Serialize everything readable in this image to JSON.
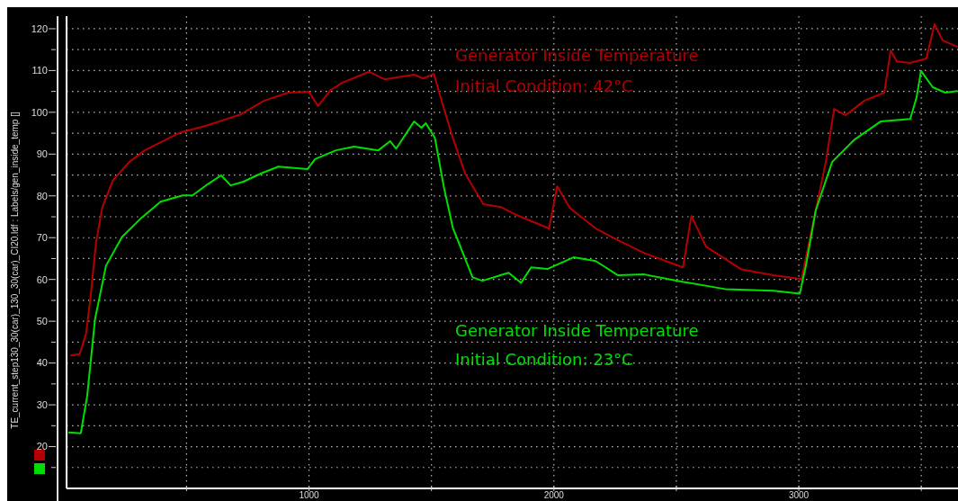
{
  "chart_data": {
    "type": "line",
    "ylabel": "TE_current_step130_30(car)_130_30(car)_CI20.ldf : Labels/gen_inside_temp []",
    "xlim": [
      10,
      3650
    ],
    "ylim": [
      10,
      123
    ],
    "xticks": [
      {
        "value": 500,
        "label": null
      },
      1000,
      {
        "value": 1500,
        "label": null
      },
      2000,
      {
        "value": 2500,
        "label": null
      },
      3000,
      {
        "value": 3500,
        "label": null
      }
    ],
    "yticks": [
      {
        "value": 15,
        "label": null
      },
      20,
      {
        "value": 25,
        "label": null
      },
      30,
      {
        "value": 35,
        "label": null
      },
      40,
      {
        "value": 45,
        "label": null
      },
      50,
      {
        "value": 55,
        "label": null
      },
      60,
      {
        "value": 65,
        "label": null
      },
      70,
      {
        "value": 75,
        "label": null
      },
      80,
      {
        "value": 85,
        "label": null
      },
      90,
      {
        "value": 95,
        "label": null
      },
      100,
      {
        "value": 105,
        "label": null
      },
      110,
      {
        "value": 115,
        "label": null
      },
      120
    ],
    "grid": true,
    "legend": false,
    "marker": "none",
    "line_style": "solid",
    "annotations": [
      "Generator Inside Temperature",
      "Initial Condition: 42°C",
      "Generator Inside Temperature",
      "Initial Condition: 23°C"
    ],
    "series": [
      {
        "color": "#b40000",
        "x": [
          28,
          64,
          90,
          108,
          130,
          156,
          200,
          266,
          329,
          475,
          574,
          721,
          817,
          915,
          1000,
          1037,
          1088,
          1136,
          1246,
          1308,
          1429,
          1466,
          1510,
          1539,
          1587,
          1638,
          1712,
          1785,
          1840,
          1980,
          2013,
          2065,
          2171,
          2262,
          2369,
          2527,
          2561,
          2622,
          2766,
          2897,
          3011,
          3110,
          3144,
          3191,
          3268,
          3349,
          3375,
          3400,
          3455,
          3521,
          3554,
          3587,
          3646
        ],
        "values": [
          41.8,
          42.2,
          47.2,
          55.8,
          68.7,
          77.3,
          83.8,
          88.1,
          90.9,
          95.2,
          96.7,
          99.5,
          102.8,
          104.7,
          104.9,
          101.5,
          105.3,
          107.1,
          109.7,
          107.9,
          109,
          108.1,
          109.2,
          103.2,
          93.9,
          85.3,
          78,
          77.3,
          75.6,
          72.2,
          82.3,
          77.1,
          72.2,
          69.4,
          66.3,
          62.9,
          75.2,
          67.8,
          62.4,
          61,
          60.1,
          88.1,
          100.8,
          99.3,
          102.8,
          104.7,
          114.8,
          112.2,
          111.8,
          112.9,
          121.1,
          117.2,
          115.7
        ]
      },
      {
        "color": "#00e000",
        "x": [
          20,
          68,
          94,
          126,
          171,
          237,
          315,
          394,
          484,
          524,
          589,
          641,
          680,
          732,
          809,
          875,
          993,
          1025,
          1110,
          1184,
          1283,
          1331,
          1356,
          1429,
          1459,
          1477,
          1514,
          1550,
          1587,
          1668,
          1708,
          1815,
          1866,
          1907,
          1973,
          2080,
          2171,
          2262,
          2369,
          2500,
          2699,
          2897,
          3004,
          3029,
          3069,
          3136,
          3228,
          3334,
          3455,
          3481,
          3499,
          3547,
          3598,
          3646
        ],
        "values": [
          23.4,
          23.2,
          32,
          50.4,
          63.3,
          70.2,
          74.7,
          78.6,
          80.1,
          80.1,
          82.9,
          84.9,
          82.5,
          83.4,
          85.5,
          87,
          86.4,
          88.8,
          90.9,
          91.8,
          90.9,
          93.1,
          91.3,
          97.8,
          96.3,
          97.4,
          93.9,
          82.3,
          72.4,
          60.5,
          59.7,
          61.6,
          59.2,
          62.9,
          62.5,
          65.3,
          64.4,
          61,
          61.2,
          59.7,
          57.7,
          57.3,
          56.6,
          63.3,
          76.5,
          88.1,
          93.5,
          97.8,
          98.4,
          103.6,
          109.9,
          106,
          104.7,
          105.1
        ]
      }
    ]
  }
}
